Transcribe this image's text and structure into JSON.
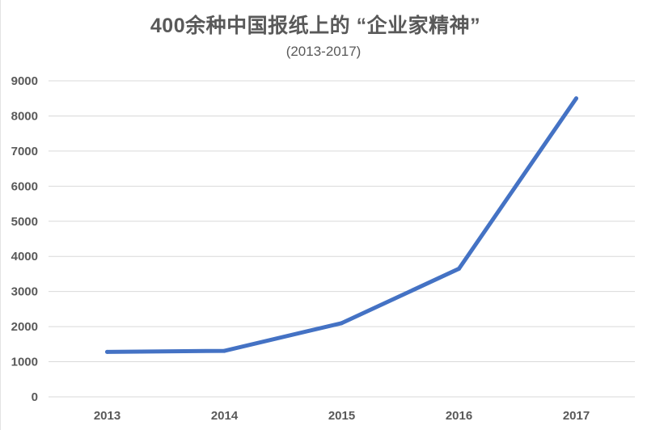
{
  "chart_data": {
    "type": "line",
    "title": "400余种中国报纸上的 “企业家精神”",
    "subtitle": "(2013-2017)",
    "xlabel": "",
    "ylabel": "",
    "categories": [
      "2013",
      "2014",
      "2015",
      "2016",
      "2017"
    ],
    "series": [
      {
        "values": [
          1280,
          1310,
          2100,
          3650,
          8500
        ]
      }
    ],
    "ylim": [
      0,
      9000
    ],
    "yticks": [
      0,
      1000,
      2000,
      3000,
      4000,
      5000,
      6000,
      7000,
      8000,
      9000
    ],
    "grid": true,
    "legend": "none",
    "colors": {
      "line": "#4472c4",
      "grid": "#d9d9d9",
      "text": "#595959"
    }
  }
}
